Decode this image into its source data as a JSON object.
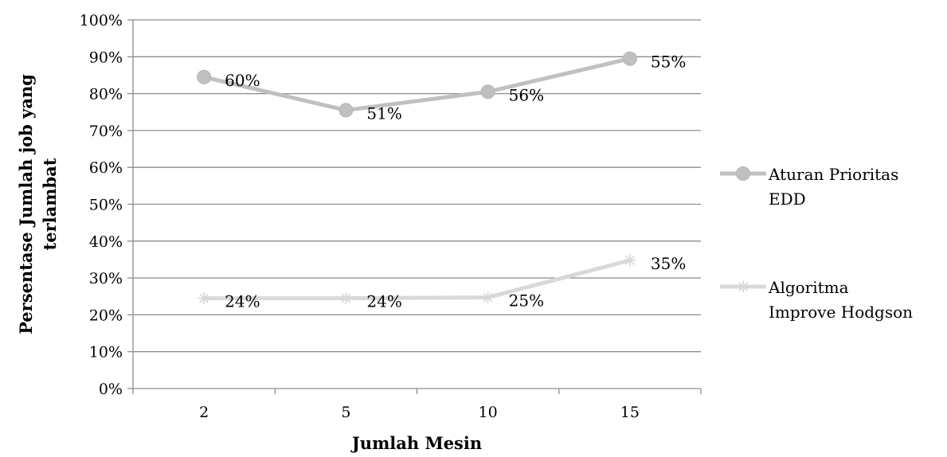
{
  "chart_data": {
    "type": "line",
    "title": "",
    "xlabel": "Jumlah Mesin",
    "ylabel_lines": [
      "Persentase Jumlah job yang",
      "terlambat"
    ],
    "categories": [
      "2",
      "5",
      "10",
      "15"
    ],
    "ylim": [
      0,
      100
    ],
    "yticks": [
      "0%",
      "10%",
      "20%",
      "30%",
      "40%",
      "50%",
      "60%",
      "70%",
      "80%",
      "90%",
      "100%"
    ],
    "grid": true,
    "legend_position": "right",
    "series": [
      {
        "name_lines": [
          "Aturan Prioritas",
          "EDD"
        ],
        "marker": "circle",
        "color": "#c0c0c0",
        "values": [
          84.5,
          75.5,
          80.5,
          89.5
        ],
        "labels": [
          "60%",
          "51%",
          "56%",
          "55%"
        ]
      },
      {
        "name_lines": [
          "Algoritma",
          "Improve Hodgson"
        ],
        "marker": "star",
        "color": "#d9d9d9",
        "values": [
          24.5,
          24.5,
          24.7,
          34.8
        ],
        "labels": [
          "24%",
          "24%",
          "25%",
          "35%"
        ]
      }
    ]
  }
}
